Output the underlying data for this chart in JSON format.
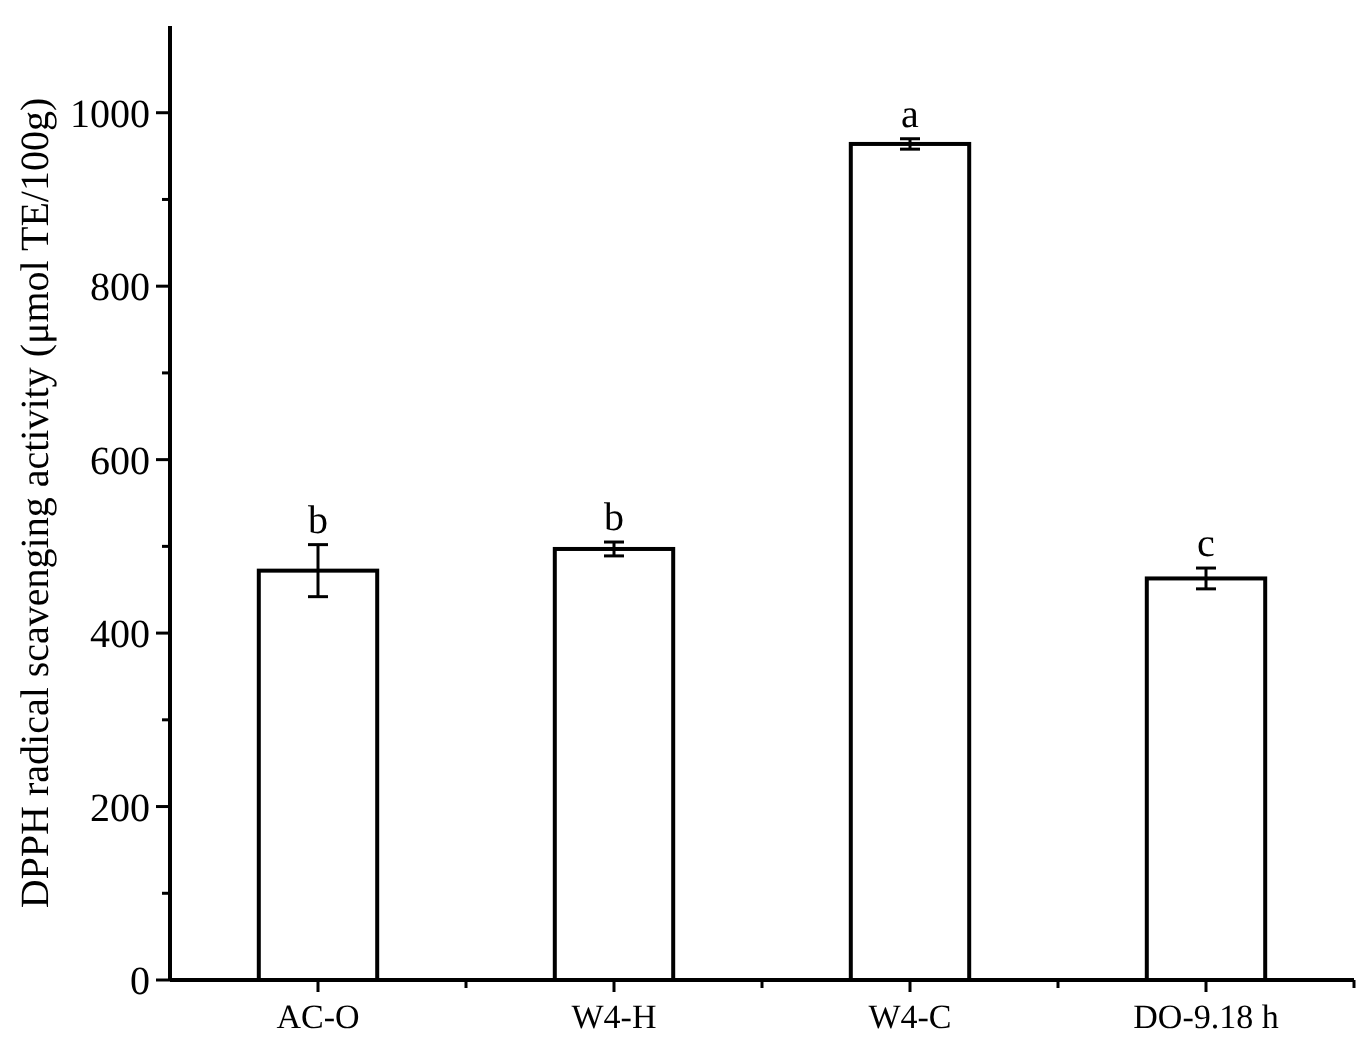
{
  "chart_data": {
    "type": "bar",
    "ylabel": "DPPH radical scavenging activity (μmol TE/100g)",
    "categories": [
      "AC-O",
      "W4-H",
      "W4-C",
      "DO-9.18 h"
    ],
    "values": [
      472,
      497,
      964,
      463
    ],
    "errors": [
      30,
      8,
      6,
      12
    ],
    "color": "#ffffff",
    "ylim": [
      0,
      1100
    ],
    "yticks": [
      0,
      {
        "value": 100,
        "label": null
      },
      200,
      {
        "value": 300,
        "label": null
      },
      400,
      {
        "value": 500,
        "label": null
      },
      600,
      {
        "value": 700,
        "label": null
      },
      800,
      {
        "value": 900,
        "label": null
      },
      1000
    ],
    "annotations": [
      {
        "text": "b",
        "x": "AC-O",
        "y": 502
      },
      {
        "text": "b",
        "x": "W4-H",
        "y": 505
      },
      {
        "text": "a",
        "x": "W4-C",
        "y": 970
      },
      {
        "text": "c",
        "x": "DO-9.18 h",
        "y": 475
      }
    ],
    "grid": false
  }
}
